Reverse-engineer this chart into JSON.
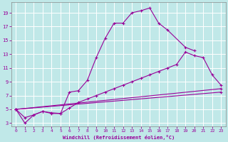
{
  "xlabel": "Windchill (Refroidissement éolien,°C)",
  "xlim": [
    -0.5,
    23.5
  ],
  "ylim": [
    2.5,
    20.5
  ],
  "xticks": [
    0,
    1,
    2,
    3,
    4,
    5,
    6,
    7,
    8,
    9,
    10,
    11,
    12,
    13,
    14,
    15,
    16,
    17,
    18,
    19,
    20,
    21,
    22,
    23
  ],
  "yticks": [
    3,
    5,
    7,
    9,
    11,
    13,
    15,
    17,
    19
  ],
  "bg_color": "#c0e8e8",
  "grid_color": "#ffffff",
  "line_color": "#990099",
  "series1_x": [
    0,
    1,
    2,
    3,
    4,
    5,
    6,
    7,
    8,
    9,
    10,
    11,
    12,
    13,
    14,
    15,
    16,
    17,
    19,
    20
  ],
  "series1_y": [
    5,
    3,
    4.2,
    4.7,
    4.5,
    4.4,
    7.5,
    7.7,
    9.2,
    12.5,
    15.3,
    17.5,
    17.5,
    19.0,
    19.3,
    19.7,
    17.5,
    16.5,
    14.0,
    13.5
  ],
  "series2_x": [
    0,
    1,
    2,
    3,
    4,
    5,
    6,
    7,
    8,
    9,
    10,
    11,
    12,
    13,
    14,
    15,
    16,
    17,
    18,
    19,
    20,
    21,
    22,
    23
  ],
  "series2_y": [
    5,
    3.8,
    4.2,
    4.7,
    4.4,
    4.4,
    5.2,
    6.0,
    6.5,
    7.0,
    7.5,
    8.0,
    8.5,
    9.0,
    9.5,
    10.0,
    10.5,
    11.0,
    11.5,
    13.3,
    12.8,
    12.5,
    10.0,
    8.5
  ],
  "series3_x": [
    0,
    23
  ],
  "series3_y": [
    5,
    8.0
  ],
  "series4_x": [
    0,
    23
  ],
  "series4_y": [
    5,
    7.5
  ]
}
